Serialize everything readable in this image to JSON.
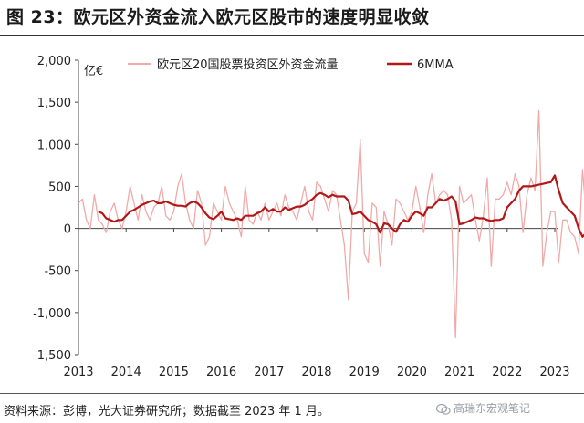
{
  "title": "图 23：欧元区外资金流入欧元区股市的速度明显收敛",
  "source": "资料来源：彭博，光大证券研究所；数据截至 2023 年 1 月。",
  "watermark": "高瑞东宏观笔记",
  "colors": {
    "monthly": "#f0aaaa",
    "mma": "#b01818",
    "axis": "#444444"
  },
  "icons": {
    "watermark": "wechat-icon"
  },
  "chart_data": {
    "type": "line",
    "title": "",
    "xlabel": "",
    "ylabel": "亿€",
    "ylim": [
      -1500,
      2000
    ],
    "yticks": [
      -1500,
      -1000,
      -500,
      0,
      500,
      1000,
      1500,
      2000
    ],
    "ytick_labels": [
      "-1,500",
      "-1,000",
      "-500",
      "0",
      "500",
      "1,000",
      "1,500",
      "2,000"
    ],
    "xtick_labels": [
      "2013",
      "2014",
      "2015",
      "2016",
      "2017",
      "2018",
      "2019",
      "2020",
      "2021",
      "2022",
      "2023"
    ],
    "start": "2013-01",
    "frequency": "monthly",
    "grid": false,
    "legend_position": "top",
    "series": [
      {
        "name": "欧元区20国股票投资区外资金流量",
        "values": [
          300,
          350,
          100,
          0,
          400,
          100,
          50,
          -50,
          200,
          300,
          100,
          0,
          200,
          500,
          300,
          100,
          400,
          200,
          100,
          250,
          300,
          500,
          150,
          100,
          200,
          500,
          650,
          300,
          100,
          0,
          450,
          300,
          -200,
          -100,
          300,
          200,
          100,
          500,
          300,
          200,
          100,
          -100,
          500,
          100,
          50,
          200,
          100,
          300,
          100,
          200,
          300,
          150,
          400,
          250,
          200,
          100,
          300,
          500,
          200,
          100,
          550,
          500,
          350,
          200,
          450,
          400,
          100,
          -200,
          -850,
          200,
          300,
          1050,
          -300,
          -400,
          300,
          250,
          -450,
          200,
          50,
          -200,
          350,
          300,
          200,
          100,
          200,
          500,
          250,
          -50,
          400,
          650,
          300,
          400,
          450,
          400,
          100,
          -1300,
          500,
          300,
          350,
          400,
          100,
          -150,
          150,
          600,
          -450,
          350,
          350,
          400,
          550,
          400,
          650,
          500,
          -50,
          400,
          600,
          450,
          1400,
          -450,
          -50,
          200,
          200,
          -400,
          100,
          100,
          -50,
          -100,
          -300,
          700,
          100,
          100
        ]
      },
      {
        "name": "6MMA",
        "values": [
          null,
          null,
          null,
          null,
          null,
          200,
          180,
          120,
          100,
          80,
          100,
          100,
          150,
          200,
          220,
          250,
          280,
          300,
          320,
          330,
          300,
          300,
          320,
          300,
          280,
          270,
          270,
          260,
          300,
          320,
          300,
          250,
          180,
          130,
          110,
          150,
          200,
          120,
          110,
          100,
          120,
          100,
          150,
          150,
          150,
          180,
          200,
          250,
          200,
          230,
          200,
          200,
          250,
          220,
          240,
          260,
          260,
          280,
          320,
          350,
          400,
          420,
          400,
          370,
          400,
          380,
          380,
          380,
          330,
          170,
          180,
          200,
          150,
          100,
          80,
          50,
          -50,
          60,
          50,
          0,
          -40,
          50,
          100,
          80,
          150,
          200,
          180,
          150,
          250,
          250,
          300,
          350,
          330,
          350,
          380,
          320,
          50,
          60,
          80,
          100,
          130,
          120,
          120,
          100,
          90,
          100,
          100,
          120,
          250,
          300,
          350,
          450,
          500,
          500,
          500,
          510,
          520,
          530,
          540,
          550,
          630,
          450,
          300,
          250,
          200,
          150,
          0,
          -100,
          -50,
          -50,
          0,
          120,
          100,
          100
        ]
      }
    ]
  }
}
